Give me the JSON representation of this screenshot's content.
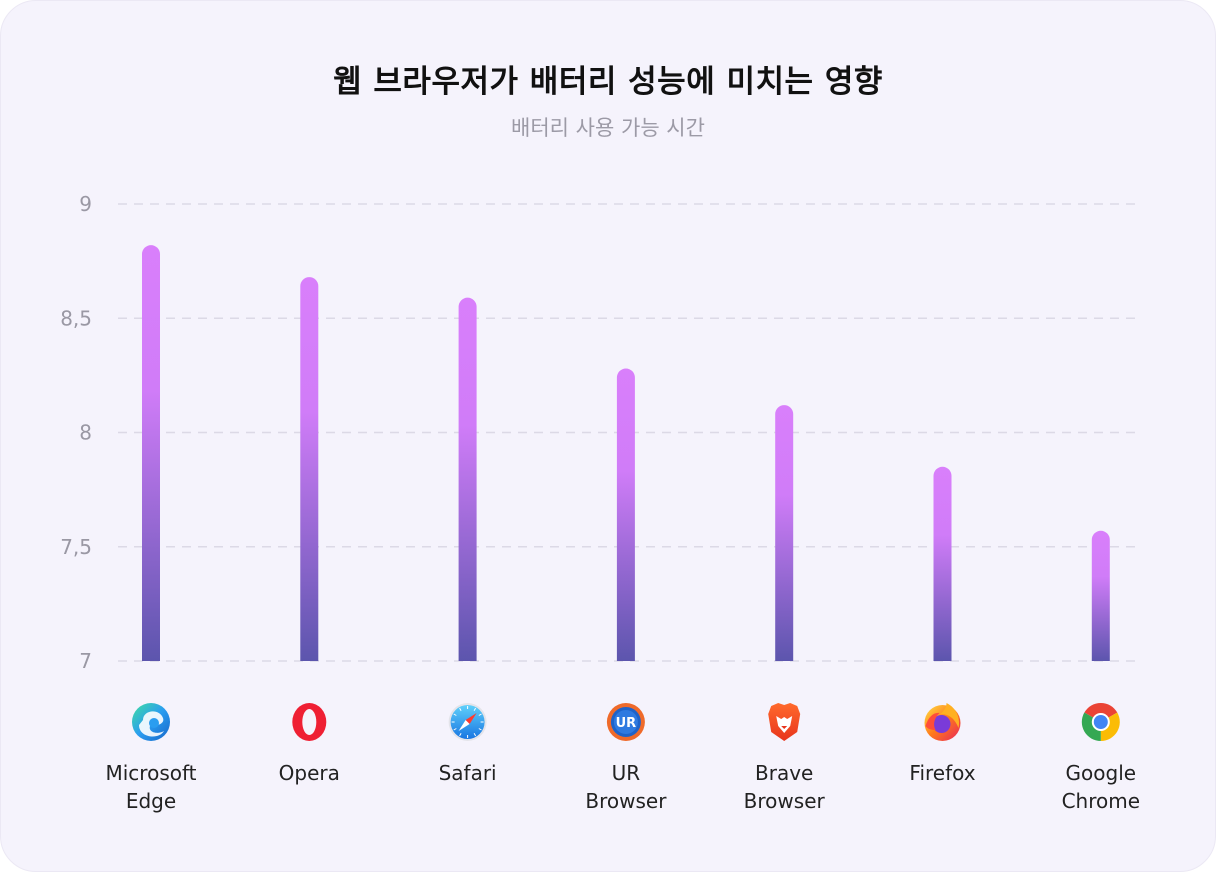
{
  "chart_data": {
    "type": "bar",
    "title": "웹 브라우저가 배터리 성능에 미치는 영향",
    "subtitle": "배터리 사용 가능 시간",
    "categories": [
      {
        "label_lines": [
          "Microsoft",
          "Edge"
        ],
        "icon": "microsoft-edge-icon"
      },
      {
        "label_lines": [
          "Opera"
        ],
        "icon": "opera-icon"
      },
      {
        "label_lines": [
          "Safari"
        ],
        "icon": "safari-icon"
      },
      {
        "label_lines": [
          "UR",
          "Browser"
        ],
        "icon": "ur-browser-icon"
      },
      {
        "label_lines": [
          "Brave",
          "Browser"
        ],
        "icon": "brave-browser-icon"
      },
      {
        "label_lines": [
          "Firefox"
        ],
        "icon": "firefox-icon"
      },
      {
        "label_lines": [
          "Google",
          "Chrome"
        ],
        "icon": "google-chrome-icon"
      }
    ],
    "values": [
      8.82,
      8.68,
      8.59,
      8.28,
      8.12,
      7.85,
      7.57
    ],
    "ylim": [
      7,
      9
    ],
    "yticks": [
      "7",
      "7,5",
      "8",
      "8,5",
      "9"
    ],
    "ytick_values": [
      7,
      7.5,
      8,
      8.5,
      9
    ],
    "grid": true,
    "grid_style": "dashed",
    "bar_gradient": {
      "top": "#d97ffb",
      "bottom": "#5c55ad"
    },
    "colors": {
      "card_background": "#f5f3fc",
      "gridline": "#dcd9e6",
      "tick_text": "#9a98a4",
      "label_text": "#222222"
    }
  }
}
